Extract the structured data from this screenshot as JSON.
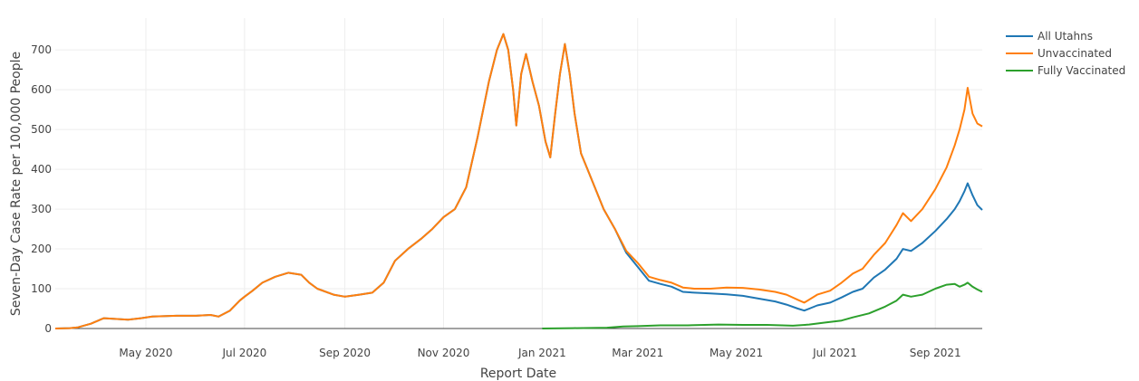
{
  "chart_data": {
    "type": "line",
    "title": "",
    "xlabel": "Report Date",
    "ylabel": "Seven-Day Case Rate per 100,000 People",
    "ylim": [
      0,
      780
    ],
    "yticks": [
      0,
      100,
      200,
      300,
      400,
      500,
      600,
      700
    ],
    "xlim": [
      "2020-03-06",
      "2021-09-30"
    ],
    "xticks": [
      {
        "date": "2020-05-01",
        "label": "May 2020"
      },
      {
        "date": "2020-07-01",
        "label": "Jul 2020"
      },
      {
        "date": "2020-09-01",
        "label": "Sep 2020"
      },
      {
        "date": "2020-11-01",
        "label": "Nov 2020"
      },
      {
        "date": "2021-01-01",
        "label": "Jan 2021"
      },
      {
        "date": "2021-03-01",
        "label": "Mar 2021"
      },
      {
        "date": "2021-05-01",
        "label": "May 2021"
      },
      {
        "date": "2021-07-01",
        "label": "Jul 2021"
      },
      {
        "date": "2021-09-01",
        "label": "Sep 2021"
      }
    ],
    "grid": true,
    "legend_position": "top-right",
    "series": [
      {
        "name": "All Utahns",
        "color": "#1f77b4",
        "points": [
          [
            "2020-03-06",
            0
          ],
          [
            "2020-03-15",
            1
          ],
          [
            "2020-03-20",
            3
          ],
          [
            "2020-03-28",
            12
          ],
          [
            "2020-04-05",
            26
          ],
          [
            "2020-04-12",
            24
          ],
          [
            "2020-04-20",
            22
          ],
          [
            "2020-04-28",
            26
          ],
          [
            "2020-05-05",
            30
          ],
          [
            "2020-05-20",
            32
          ],
          [
            "2020-06-01",
            32
          ],
          [
            "2020-06-10",
            34
          ],
          [
            "2020-06-15",
            30
          ],
          [
            "2020-06-22",
            45
          ],
          [
            "2020-06-28",
            70
          ],
          [
            "2020-07-01",
            80
          ],
          [
            "2020-07-06",
            95
          ],
          [
            "2020-07-12",
            115
          ],
          [
            "2020-07-20",
            130
          ],
          [
            "2020-07-28",
            140
          ],
          [
            "2020-08-05",
            135
          ],
          [
            "2020-08-10",
            115
          ],
          [
            "2020-08-15",
            100
          ],
          [
            "2020-08-25",
            85
          ],
          [
            "2020-09-01",
            80
          ],
          [
            "2020-09-10",
            85
          ],
          [
            "2020-09-18",
            90
          ],
          [
            "2020-09-25",
            115
          ],
          [
            "2020-10-02",
            170
          ],
          [
            "2020-10-10",
            200
          ],
          [
            "2020-10-18",
            225
          ],
          [
            "2020-10-25",
            250
          ],
          [
            "2020-11-01",
            280
          ],
          [
            "2020-11-08",
            300
          ],
          [
            "2020-11-15",
            355
          ],
          [
            "2020-11-22",
            480
          ],
          [
            "2020-11-29",
            620
          ],
          [
            "2020-12-04",
            700
          ],
          [
            "2020-12-08",
            740
          ],
          [
            "2020-12-11",
            700
          ],
          [
            "2020-12-14",
            600
          ],
          [
            "2020-12-16",
            510
          ],
          [
            "2020-12-19",
            640
          ],
          [
            "2020-12-22",
            690
          ],
          [
            "2020-12-26",
            620
          ],
          [
            "2020-12-30",
            560
          ],
          [
            "2021-01-03",
            470
          ],
          [
            "2021-01-06",
            430
          ],
          [
            "2021-01-09",
            540
          ],
          [
            "2021-01-12",
            640
          ],
          [
            "2021-01-15",
            715
          ],
          [
            "2021-01-18",
            640
          ],
          [
            "2021-01-21",
            540
          ],
          [
            "2021-01-25",
            440
          ],
          [
            "2021-01-29",
            400
          ],
          [
            "2021-02-03",
            350
          ],
          [
            "2021-02-08",
            300
          ],
          [
            "2021-02-15",
            250
          ],
          [
            "2021-02-22",
            190
          ],
          [
            "2021-03-01",
            155
          ],
          [
            "2021-03-08",
            120
          ],
          [
            "2021-03-15",
            112
          ],
          [
            "2021-03-22",
            105
          ],
          [
            "2021-03-29",
            92
          ],
          [
            "2021-04-05",
            90
          ],
          [
            "2021-04-15",
            88
          ],
          [
            "2021-04-25",
            86
          ],
          [
            "2021-05-05",
            82
          ],
          [
            "2021-05-15",
            75
          ],
          [
            "2021-05-25",
            68
          ],
          [
            "2021-06-01",
            60
          ],
          [
            "2021-06-08",
            50
          ],
          [
            "2021-06-12",
            45
          ],
          [
            "2021-06-20",
            58
          ],
          [
            "2021-06-28",
            65
          ],
          [
            "2021-07-05",
            78
          ],
          [
            "2021-07-12",
            92
          ],
          [
            "2021-07-18",
            100
          ],
          [
            "2021-07-25",
            128
          ],
          [
            "2021-08-01",
            148
          ],
          [
            "2021-08-08",
            175
          ],
          [
            "2021-08-12",
            200
          ],
          [
            "2021-08-17",
            195
          ],
          [
            "2021-08-24",
            215
          ],
          [
            "2021-09-01",
            245
          ],
          [
            "2021-09-08",
            275
          ],
          [
            "2021-09-13",
            300
          ],
          [
            "2021-09-16",
            320
          ],
          [
            "2021-09-19",
            345
          ],
          [
            "2021-09-21",
            365
          ],
          [
            "2021-09-24",
            335
          ],
          [
            "2021-09-27",
            310
          ],
          [
            "2021-09-30",
            298
          ]
        ]
      },
      {
        "name": "Unvaccinated",
        "color": "#ff7f0e",
        "points": [
          [
            "2020-03-06",
            0
          ],
          [
            "2020-03-15",
            1
          ],
          [
            "2020-03-20",
            3
          ],
          [
            "2020-03-28",
            12
          ],
          [
            "2020-04-05",
            26
          ],
          [
            "2020-04-12",
            24
          ],
          [
            "2020-04-20",
            22
          ],
          [
            "2020-04-28",
            26
          ],
          [
            "2020-05-05",
            30
          ],
          [
            "2020-05-20",
            32
          ],
          [
            "2020-06-01",
            32
          ],
          [
            "2020-06-10",
            34
          ],
          [
            "2020-06-15",
            30
          ],
          [
            "2020-06-22",
            45
          ],
          [
            "2020-06-28",
            70
          ],
          [
            "2020-07-01",
            80
          ],
          [
            "2020-07-06",
            95
          ],
          [
            "2020-07-12",
            115
          ],
          [
            "2020-07-20",
            130
          ],
          [
            "2020-07-28",
            140
          ],
          [
            "2020-08-05",
            135
          ],
          [
            "2020-08-10",
            115
          ],
          [
            "2020-08-15",
            100
          ],
          [
            "2020-08-25",
            85
          ],
          [
            "2020-09-01",
            80
          ],
          [
            "2020-09-10",
            85
          ],
          [
            "2020-09-18",
            90
          ],
          [
            "2020-09-25",
            115
          ],
          [
            "2020-10-02",
            170
          ],
          [
            "2020-10-10",
            200
          ],
          [
            "2020-10-18",
            225
          ],
          [
            "2020-10-25",
            250
          ],
          [
            "2020-11-01",
            280
          ],
          [
            "2020-11-08",
            300
          ],
          [
            "2020-11-15",
            355
          ],
          [
            "2020-11-22",
            480
          ],
          [
            "2020-11-29",
            620
          ],
          [
            "2020-12-04",
            700
          ],
          [
            "2020-12-08",
            740
          ],
          [
            "2020-12-11",
            700
          ],
          [
            "2020-12-14",
            600
          ],
          [
            "2020-12-16",
            510
          ],
          [
            "2020-12-19",
            640
          ],
          [
            "2020-12-22",
            690
          ],
          [
            "2020-12-26",
            620
          ],
          [
            "2020-12-30",
            560
          ],
          [
            "2021-01-03",
            470
          ],
          [
            "2021-01-06",
            430
          ],
          [
            "2021-01-09",
            540
          ],
          [
            "2021-01-12",
            640
          ],
          [
            "2021-01-15",
            715
          ],
          [
            "2021-01-18",
            640
          ],
          [
            "2021-01-21",
            540
          ],
          [
            "2021-01-25",
            440
          ],
          [
            "2021-01-29",
            400
          ],
          [
            "2021-02-03",
            350
          ],
          [
            "2021-02-08",
            300
          ],
          [
            "2021-02-15",
            250
          ],
          [
            "2021-02-22",
            195
          ],
          [
            "2021-03-01",
            165
          ],
          [
            "2021-03-08",
            130
          ],
          [
            "2021-03-15",
            122
          ],
          [
            "2021-03-22",
            115
          ],
          [
            "2021-03-29",
            103
          ],
          [
            "2021-04-05",
            100
          ],
          [
            "2021-04-15",
            100
          ],
          [
            "2021-04-25",
            103
          ],
          [
            "2021-05-05",
            102
          ],
          [
            "2021-05-15",
            98
          ],
          [
            "2021-05-25",
            92
          ],
          [
            "2021-06-01",
            85
          ],
          [
            "2021-06-08",
            72
          ],
          [
            "2021-06-12",
            65
          ],
          [
            "2021-06-20",
            85
          ],
          [
            "2021-06-28",
            95
          ],
          [
            "2021-07-05",
            115
          ],
          [
            "2021-07-12",
            138
          ],
          [
            "2021-07-18",
            150
          ],
          [
            "2021-07-25",
            185
          ],
          [
            "2021-08-01",
            215
          ],
          [
            "2021-08-08",
            260
          ],
          [
            "2021-08-12",
            290
          ],
          [
            "2021-08-17",
            270
          ],
          [
            "2021-08-24",
            300
          ],
          [
            "2021-09-01",
            350
          ],
          [
            "2021-09-08",
            405
          ],
          [
            "2021-09-13",
            460
          ],
          [
            "2021-09-16",
            500
          ],
          [
            "2021-09-19",
            550
          ],
          [
            "2021-09-21",
            605
          ],
          [
            "2021-09-24",
            540
          ],
          [
            "2021-09-27",
            515
          ],
          [
            "2021-09-30",
            508
          ]
        ]
      },
      {
        "name": "Fully Vaccinated",
        "color": "#2ca02c",
        "points": [
          [
            "2021-01-01",
            0
          ],
          [
            "2021-01-20",
            1
          ],
          [
            "2021-02-10",
            2
          ],
          [
            "2021-02-20",
            5
          ],
          [
            "2021-03-01",
            6
          ],
          [
            "2021-03-15",
            8
          ],
          [
            "2021-04-01",
            8
          ],
          [
            "2021-04-20",
            10
          ],
          [
            "2021-05-05",
            9
          ],
          [
            "2021-05-20",
            9
          ],
          [
            "2021-06-05",
            7
          ],
          [
            "2021-06-15",
            10
          ],
          [
            "2021-06-25",
            15
          ],
          [
            "2021-07-05",
            20
          ],
          [
            "2021-07-12",
            28
          ],
          [
            "2021-07-22",
            38
          ],
          [
            "2021-08-01",
            55
          ],
          [
            "2021-08-08",
            70
          ],
          [
            "2021-08-12",
            85
          ],
          [
            "2021-08-17",
            80
          ],
          [
            "2021-08-24",
            85
          ],
          [
            "2021-09-01",
            100
          ],
          [
            "2021-09-08",
            110
          ],
          [
            "2021-09-13",
            112
          ],
          [
            "2021-09-16",
            105
          ],
          [
            "2021-09-19",
            110
          ],
          [
            "2021-09-21",
            115
          ],
          [
            "2021-09-24",
            105
          ],
          [
            "2021-09-27",
            98
          ],
          [
            "2021-09-30",
            92
          ]
        ]
      }
    ]
  }
}
